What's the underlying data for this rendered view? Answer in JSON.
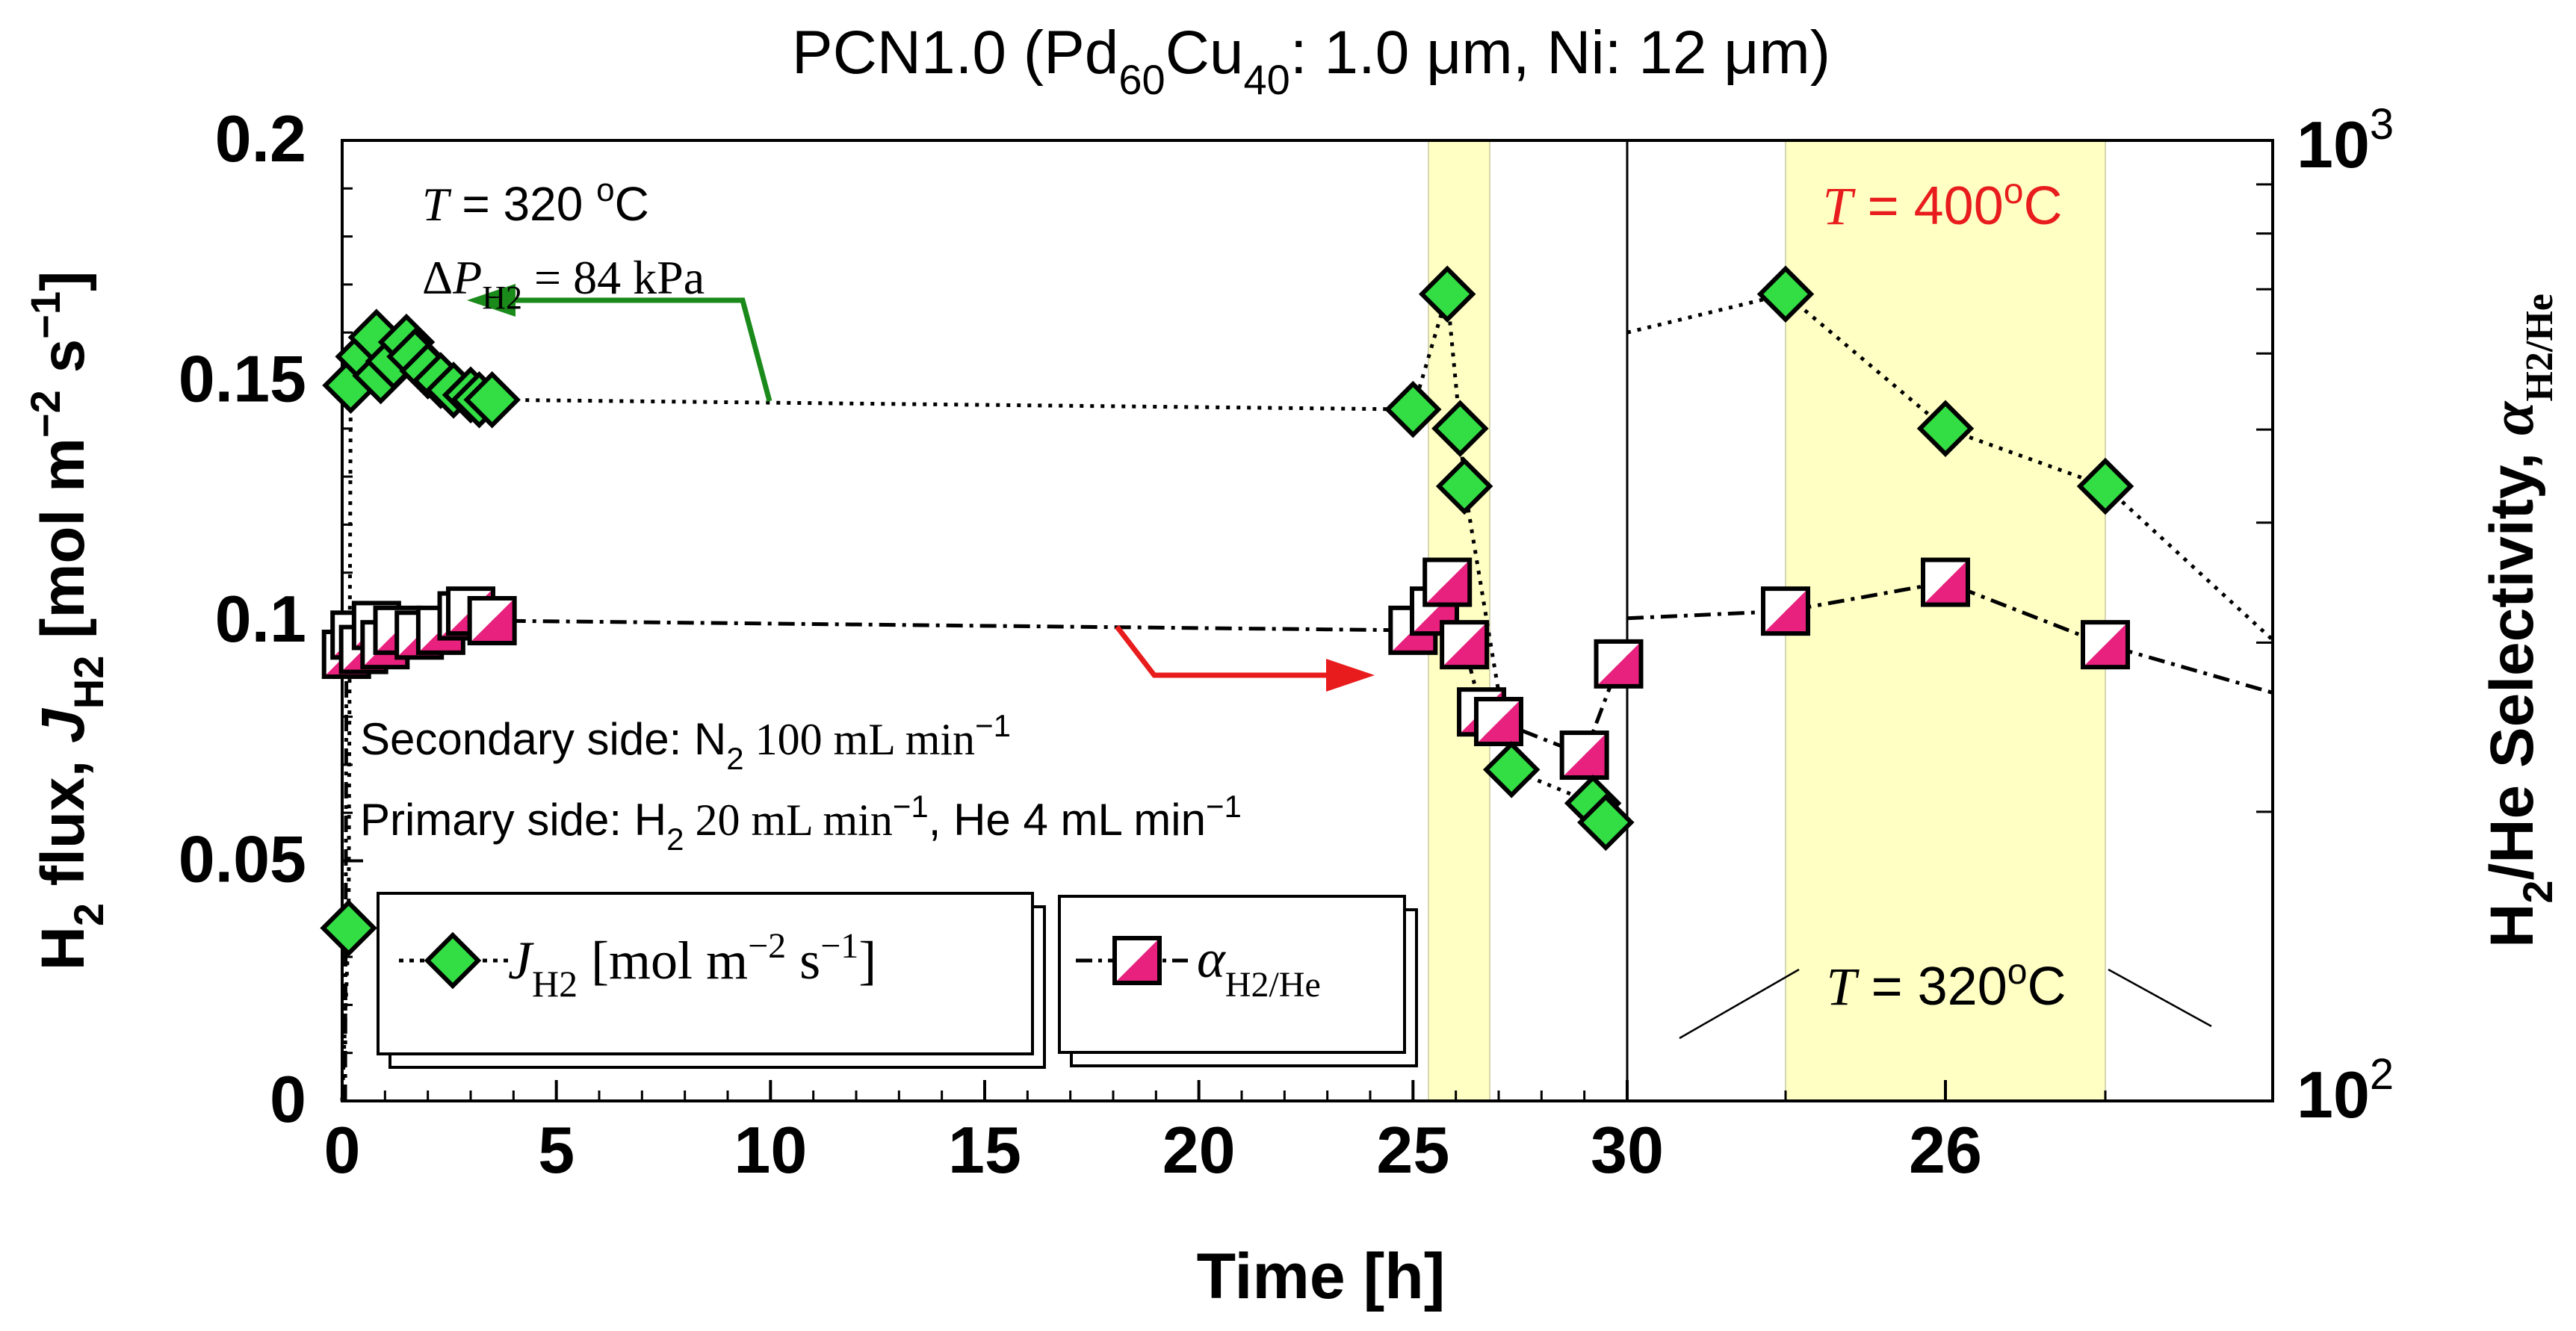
{
  "chart_data": {
    "type": "scatter",
    "title": {
      "prefix": "PCN1.0 (Pd",
      "sub1": "60",
      "mid": "Cu",
      "sub2": "40",
      "rest": ": 1.0 μm, Ni: 12 μm)"
    },
    "ylabel_left": {
      "main": "H",
      "sub": "2",
      "rest": " flux, ",
      "J": "J",
      "Jsub": "H2",
      "unit": " [mol m",
      "exp1": "−2",
      "s": " s",
      "exp2": "−1",
      "close": "]"
    },
    "ylabel_right": {
      "main": "H",
      "sub": "2",
      "rest": "/He Selectivity, ",
      "alpha": "α",
      "asub": "H2/He"
    },
    "xlabel": "Time [h]",
    "left_axis": {
      "min": 0,
      "max": 0.2,
      "ticks": [
        "0",
        "0.05",
        "0.1",
        "0.15",
        "0.2"
      ],
      "tick_values": [
        0,
        0.05,
        0.1,
        0.15,
        0.2
      ]
    },
    "right_axis": {
      "scale": "log",
      "min": 100,
      "max": 1000,
      "ticks": [
        {
          "base": "10",
          "exp": "2"
        },
        {
          "base": "10",
          "exp": "3"
        }
      ]
    },
    "x_axis_1": {
      "min": 0,
      "max": 30,
      "ticks": [
        "0",
        "5",
        "10",
        "15",
        "20",
        "25",
        "30"
      ],
      "tick_values": [
        0,
        5,
        10,
        15,
        20,
        25,
        30
      ]
    },
    "x_axis_2": {
      "note": "second panel, days scale",
      "ticks": [
        "26"
      ]
    },
    "series": [
      {
        "name": "J_H2 [mol m^-2 s^-1]",
        "marker": "diamond",
        "color": "#33dd44",
        "x": [
          0.15,
          0.2,
          0.5,
          0.8,
          0.9,
          1.2,
          1.5,
          1.7,
          2.0,
          2.3,
          2.6,
          3.0,
          3.2,
          3.5,
          25.0,
          25.8,
          26.1,
          26.2,
          27.3,
          29.2,
          29.5
        ],
        "y": [
          0.036,
          0.149,
          0.155,
          0.159,
          0.151,
          0.154,
          0.158,
          0.155,
          0.152,
          0.15,
          0.148,
          0.147,
          0.146,
          0.146,
          0.144,
          0.168,
          0.14,
          0.128,
          0.069,
          0.062,
          0.058
        ]
      },
      {
        "name": "α_H2/He",
        "marker": "half-filled-square",
        "color": "#e8207e",
        "x": [
          0.1,
          0.3,
          0.5,
          0.8,
          1.0,
          1.3,
          1.8,
          2.3,
          2.8,
          3.0,
          3.5,
          25.0,
          25.5,
          25.8,
          26.2,
          26.6,
          27.0,
          29.0,
          29.8
        ],
        "y": [
          0.093,
          0.097,
          0.094,
          0.099,
          0.095,
          0.098,
          0.097,
          0.098,
          0.101,
          0.102,
          0.1,
          0.098,
          0.102,
          0.108,
          0.095,
          0.081,
          0.079,
          0.072,
          0.091
        ]
      }
    ],
    "panel2_series": [
      {
        "name": "J_H2",
        "points": [
          0.168,
          0.14,
          0.128
        ]
      },
      {
        "name": "α_H2/He",
        "points": [
          0.102,
          0.108,
          0.095
        ]
      }
    ],
    "legend": [
      {
        "label_main": "J",
        "label_sub": "H2",
        "label_rest": " [mol m",
        "exp1": "−2",
        "s": " s",
        "exp2": "−1",
        "close": "]"
      },
      {
        "label_main": "α",
        "label_sub": "H2/He"
      }
    ],
    "annotations": {
      "temp_a": {
        "T": "T",
        "rest": " = 320 ",
        "deg": "o",
        "C": "C"
      },
      "pressure": {
        "delta": "Δ",
        "P": "P",
        "sub": "H2",
        "rest": " = 84 kPa"
      },
      "secondary": {
        "text": "Secondary side: N",
        "sub": "2",
        "rest": " 100 mL min",
        "exp": "−1"
      },
      "primary": {
        "text": "Primary side: H",
        "sub": "2",
        "rest1": " 20 mL min",
        "exp1": "−1",
        "rest2": ", He 4 mL min",
        "exp2": "−1"
      },
      "temp_high": {
        "T": "T",
        "rest": " = 400",
        "deg": "o",
        "C": "C"
      },
      "temp_low": {
        "T": "T",
        "rest": " = 320",
        "deg": "o",
        "C": "C"
      }
    }
  }
}
